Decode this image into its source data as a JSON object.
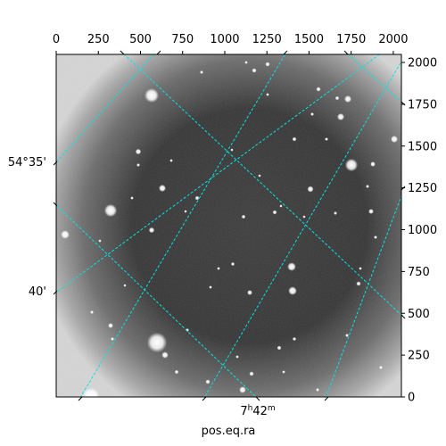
{
  "chart_data": {
    "type": "image",
    "xlabel": "pos.eq.ra",
    "pixel_axes": {
      "x": {
        "range": [
          0,
          2048
        ],
        "ticks": [
          0,
          250,
          500,
          750,
          1000,
          1250,
          1500,
          1750,
          2000
        ],
        "position": "top"
      },
      "y": {
        "range": [
          0,
          2048
        ],
        "ticks": [
          0,
          250,
          500,
          750,
          1000,
          1250,
          1500,
          1750,
          2000
        ],
        "position": "right"
      }
    },
    "world_labels": {
      "dec": [
        "54°35'",
        "40'"
      ],
      "ra": "7h42m"
    },
    "grid": true,
    "grid_color": "#00e5e5",
    "colormap": "gray"
  }
}
